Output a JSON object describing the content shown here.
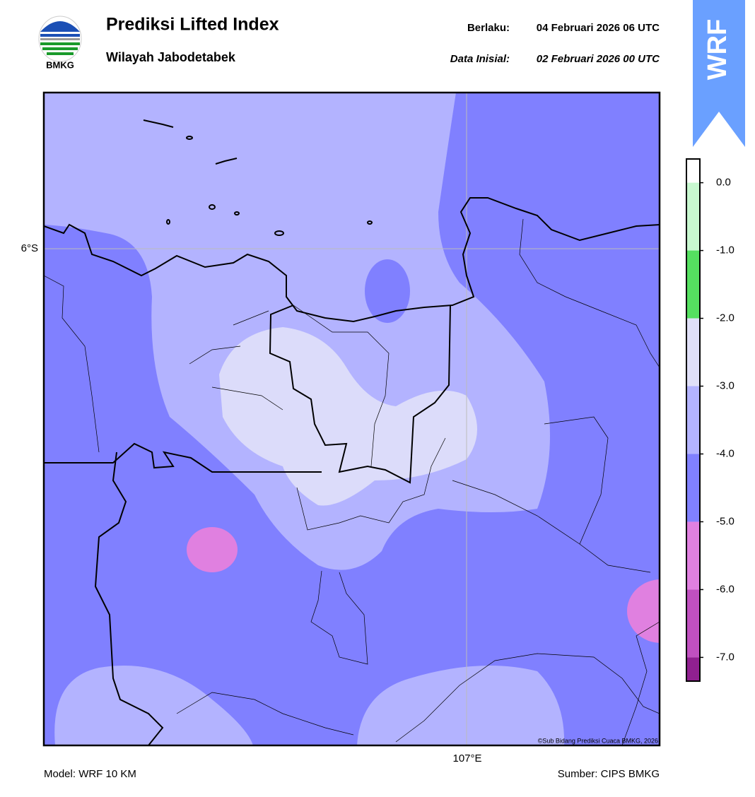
{
  "header": {
    "logo_text": "BMKG",
    "title": "Prediksi Lifted Index",
    "subtitle": "Wilayah Jabodetabek",
    "valid_label": "Berlaku:",
    "valid_time": "04 Februari 2026 06 UTC",
    "init_label": "Data Inisial:",
    "init_time": "02 Februari 2026 00 UTC",
    "badge": "WRF"
  },
  "map": {
    "lat_label": "6°S",
    "lon_label": "107°E",
    "credit": "©Sub Bidang Prediksi Cuaca BMKG, 2026"
  },
  "colorbar": {
    "bounds": [
      0.35,
      0,
      -1,
      -2,
      -3,
      -4,
      -5,
      -6,
      -7,
      -7.35
    ],
    "colors": [
      "#ffffff",
      "#c8f8d0",
      "#55e060",
      "#e0e0f8",
      "#b3b3ff",
      "#8080ff",
      "#e080e0",
      "#c050c0",
      "#902090"
    ],
    "ticks": [
      {
        "value": 0,
        "label": "0.0"
      },
      {
        "value": -1,
        "label": "-1.0"
      },
      {
        "value": -2,
        "label": "-2.0"
      },
      {
        "value": -3,
        "label": "-3.0"
      },
      {
        "value": -4,
        "label": "-4.0"
      },
      {
        "value": -5,
        "label": "-5.0"
      },
      {
        "value": -6,
        "label": "-6.0"
      },
      {
        "value": -7,
        "label": "-7.0"
      }
    ]
  },
  "footer": {
    "model": "Model: WRF 10 KM",
    "source": "Sumber: CIPS BMKG"
  }
}
